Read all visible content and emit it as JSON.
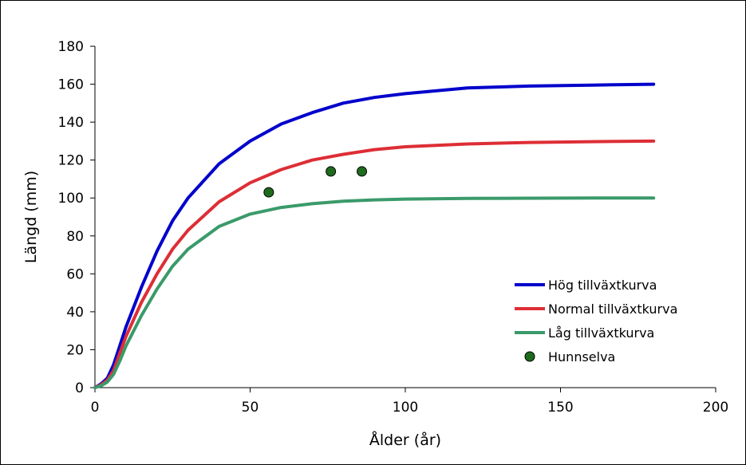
{
  "chart_data": {
    "type": "line",
    "xlabel": "Ålder (år)",
    "ylabel": "Längd (mm)",
    "xlim": [
      0,
      200
    ],
    "ylim": [
      0,
      180
    ],
    "xticks": [
      0,
      50,
      100,
      150,
      200
    ],
    "yticks": [
      0,
      20,
      40,
      60,
      80,
      100,
      120,
      140,
      160,
      180
    ],
    "grid": false,
    "legend_position": "bottom-right",
    "series": [
      {
        "name": "Hög tillväxtkurva",
        "kind": "line",
        "color": "#0000cc",
        "x": [
          0,
          2,
          4,
          6,
          8,
          10,
          15,
          20,
          25,
          30,
          40,
          50,
          60,
          70,
          80,
          90,
          100,
          120,
          140,
          160,
          180
        ],
        "y": [
          0,
          2,
          5,
          12,
          22,
          32,
          53,
          72,
          88,
          100,
          118,
          130,
          139,
          145,
          150,
          153,
          155,
          158,
          159,
          159.5,
          160
        ]
      },
      {
        "name": "Normal tillväxtkurva",
        "kind": "line",
        "color": "#dd2e35",
        "x": [
          0,
          2,
          4,
          6,
          8,
          10,
          15,
          20,
          25,
          30,
          40,
          50,
          60,
          70,
          80,
          90,
          100,
          120,
          140,
          160,
          180
        ],
        "y": [
          0,
          1.5,
          4,
          9,
          18,
          27,
          45,
          60,
          73,
          83,
          98,
          108,
          115,
          120,
          123,
          125.5,
          127,
          128.5,
          129.3,
          129.7,
          130
        ]
      },
      {
        "name": "Låg tillväxtkurva",
        "kind": "line",
        "color": "#3a9a6a",
        "x": [
          0,
          2,
          4,
          6,
          8,
          10,
          15,
          20,
          25,
          30,
          40,
          50,
          60,
          70,
          80,
          90,
          100,
          120,
          140,
          160,
          180
        ],
        "y": [
          0,
          1,
          3,
          7,
          14,
          22,
          38,
          52,
          64,
          73,
          85,
          91.5,
          95,
          97,
          98.3,
          99,
          99.4,
          99.8,
          99.9,
          100,
          100
        ]
      },
      {
        "name": "Hunnselva",
        "kind": "scatter",
        "color": "#1e6b1e",
        "x": [
          56,
          76,
          86
        ],
        "y": [
          103,
          114,
          114
        ]
      }
    ]
  }
}
